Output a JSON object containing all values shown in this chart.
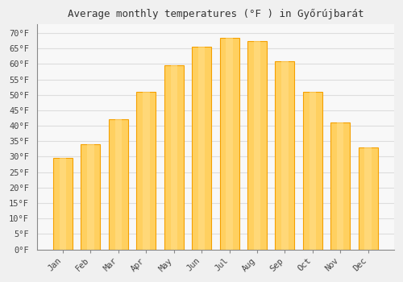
{
  "title": "Average monthly temperatures (°F ) in Győrújbarát",
  "months": [
    "Jan",
    "Feb",
    "Mar",
    "Apr",
    "May",
    "Jun",
    "Jul",
    "Aug",
    "Sep",
    "Oct",
    "Nov",
    "Dec"
  ],
  "values": [
    29.5,
    34.0,
    42.0,
    51.0,
    59.5,
    65.5,
    68.5,
    67.5,
    61.0,
    51.0,
    41.0,
    33.0
  ],
  "bar_color_center": "#FFD060",
  "bar_color_edge": "#F5A000",
  "background_color": "#F0F0F0",
  "plot_background": "#F8F8F8",
  "grid_color": "#DDDDDD",
  "spine_color": "#888888",
  "ytick_min": 0,
  "ytick_max": 70,
  "ytick_step": 5,
  "title_fontsize": 9,
  "tick_fontsize": 7.5
}
